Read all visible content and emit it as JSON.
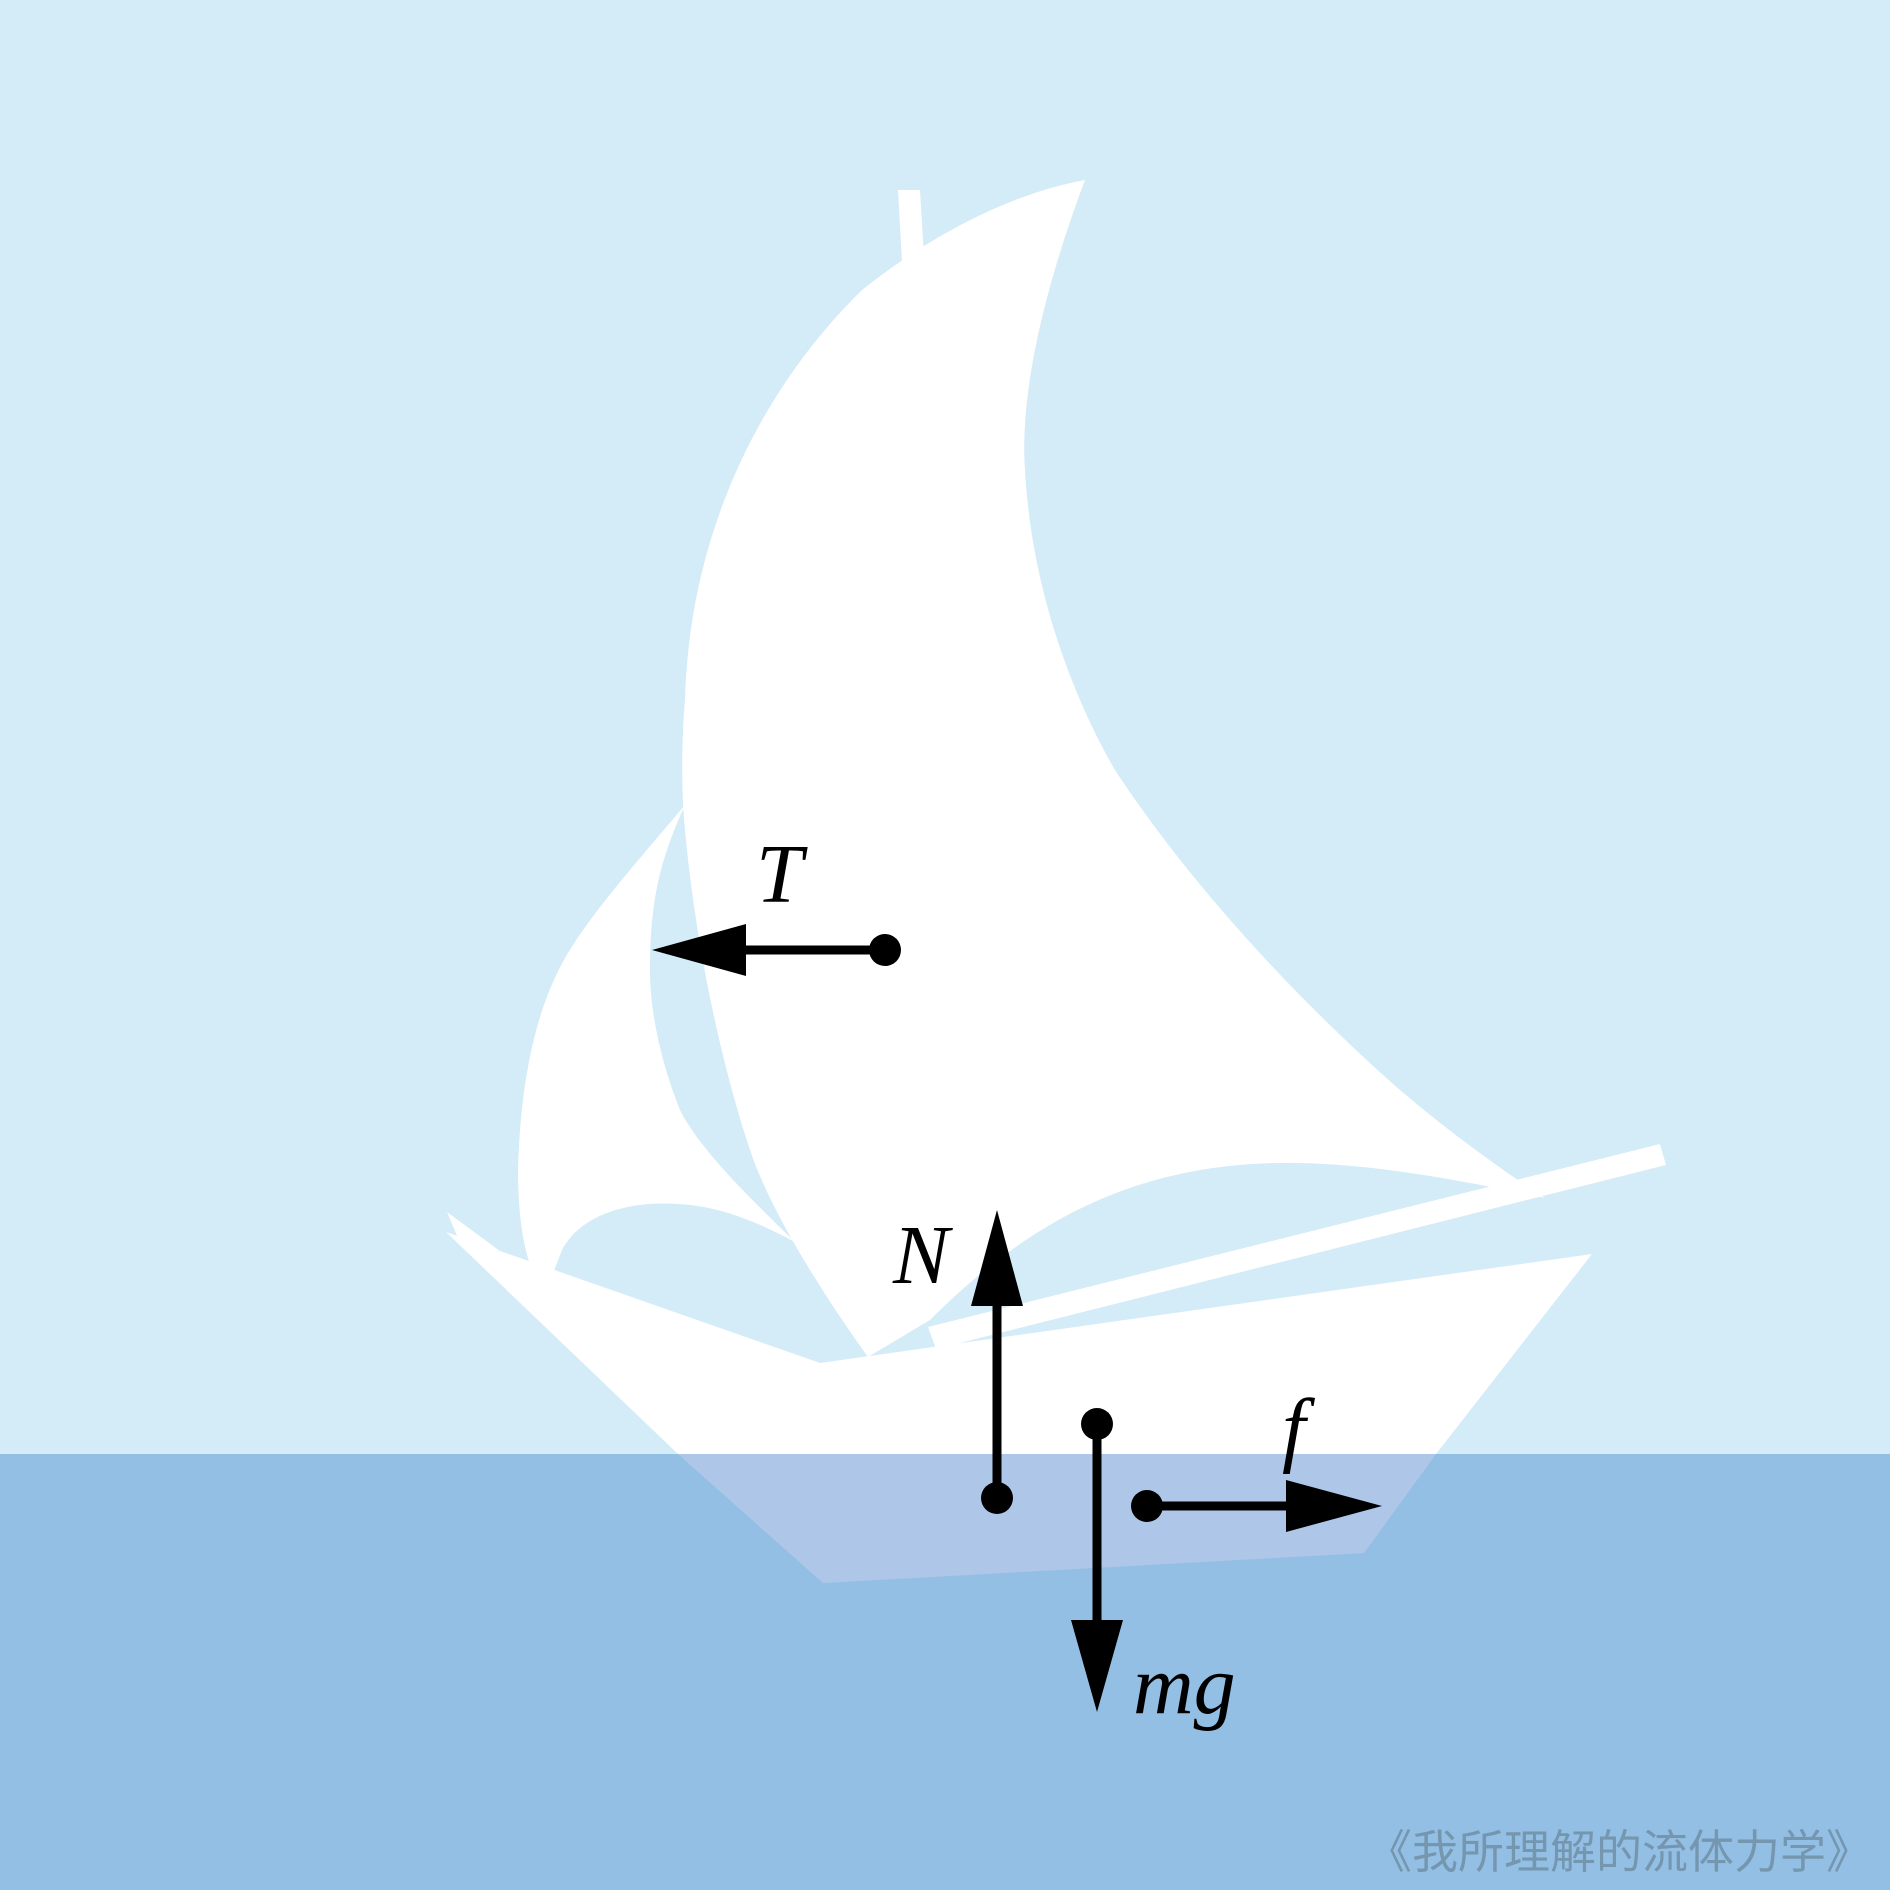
{
  "diagram": {
    "colors": {
      "sky": "#d4ebf8",
      "water": "#94bfe5",
      "boat": "#ffffff",
      "submerged_hull": "#aec7e8",
      "arrows": "#000000"
    },
    "forces": [
      {
        "id": "T",
        "label": "T",
        "direction": "left"
      },
      {
        "id": "N",
        "label": "N",
        "direction": "up"
      },
      {
        "id": "mg",
        "label": "mg",
        "direction": "down"
      },
      {
        "id": "f",
        "label": "f",
        "direction": "right"
      }
    ],
    "watermark": "《我所理解的流体力学》"
  }
}
